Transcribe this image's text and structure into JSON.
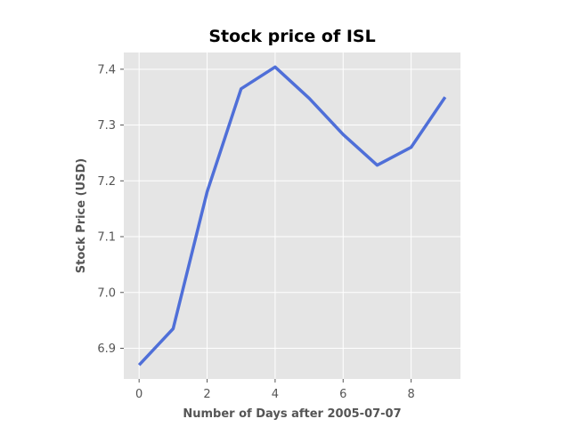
{
  "chart_data": {
    "type": "line",
    "title": "Stock price of ISL",
    "xlabel": "Number of Days after 2005-07-07",
    "ylabel": "Stock Price (USD)",
    "xlim": [
      -0.45,
      9.45
    ],
    "ylim": [
      6.845,
      7.43
    ],
    "xticks": [
      0,
      2,
      4,
      6,
      8
    ],
    "xtick_labels": [
      "0",
      "2",
      "4",
      "6",
      "8"
    ],
    "yticks": [
      6.9,
      7.0,
      7.1,
      7.2,
      7.3,
      7.4
    ],
    "ytick_labels": [
      "6.9",
      "7.0",
      "7.1",
      "7.2",
      "7.3",
      "7.4"
    ],
    "grid": true,
    "series": [
      {
        "color": "#4f6fd8",
        "x": [
          0,
          1,
          2,
          3,
          4,
          5,
          6,
          7,
          8,
          9
        ],
        "y": [
          6.87,
          6.935,
          7.18,
          7.365,
          7.404,
          7.348,
          7.283,
          7.228,
          7.26,
          7.35
        ]
      }
    ]
  }
}
